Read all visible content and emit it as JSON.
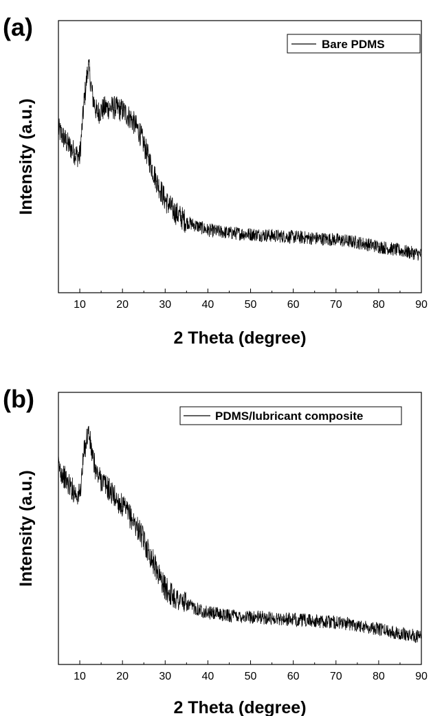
{
  "chart_data": [
    {
      "type": "line",
      "panel_label": "(a)",
      "xlabel": "2 Theta (degree)",
      "ylabel": "Intensity (a.u.)",
      "xlim": [
        5,
        90
      ],
      "xticks": [
        10,
        20,
        30,
        40,
        50,
        60,
        70,
        80,
        90
      ],
      "ylim": [
        0,
        1
      ],
      "yticks_shown": false,
      "grid": false,
      "legend_position": "top-right",
      "series": [
        {
          "name": "Bare PDMS",
          "color": "#000000",
          "x": [
            5,
            7,
            9,
            10,
            11,
            12,
            13,
            14,
            16,
            18,
            20,
            22,
            24,
            26,
            28,
            30,
            32,
            35,
            40,
            45,
            50,
            55,
            60,
            65,
            70,
            75,
            80,
            85,
            90
          ],
          "y": [
            0.6,
            0.55,
            0.51,
            0.5,
            0.7,
            0.84,
            0.72,
            0.66,
            0.68,
            0.68,
            0.67,
            0.64,
            0.59,
            0.5,
            0.41,
            0.34,
            0.3,
            0.26,
            0.23,
            0.22,
            0.215,
            0.21,
            0.205,
            0.2,
            0.195,
            0.185,
            0.17,
            0.155,
            0.14
          ]
        }
      ]
    },
    {
      "type": "line",
      "panel_label": "(b)",
      "xlabel": "2 Theta (degree)",
      "ylabel": "Intensity (a.u.)",
      "xlim": [
        5,
        90
      ],
      "xticks": [
        10,
        20,
        30,
        40,
        50,
        60,
        70,
        80,
        90
      ],
      "ylim": [
        0,
        1
      ],
      "yticks_shown": false,
      "grid": false,
      "legend_position": "top-right",
      "series": [
        {
          "name": "PDMS/lubricant composite",
          "color": "#000000",
          "x": [
            5,
            7,
            9,
            10,
            11,
            12,
            13,
            14,
            16,
            18,
            20,
            22,
            24,
            26,
            28,
            30,
            32,
            35,
            40,
            45,
            50,
            55,
            60,
            65,
            70,
            75,
            80,
            85,
            90
          ],
          "y": [
            0.73,
            0.67,
            0.63,
            0.62,
            0.78,
            0.86,
            0.76,
            0.7,
            0.66,
            0.62,
            0.58,
            0.54,
            0.49,
            0.42,
            0.35,
            0.28,
            0.25,
            0.22,
            0.19,
            0.18,
            0.175,
            0.17,
            0.165,
            0.16,
            0.155,
            0.145,
            0.13,
            0.115,
            0.1
          ]
        }
      ]
    }
  ]
}
